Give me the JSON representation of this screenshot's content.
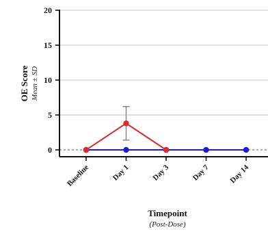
{
  "chart_data": {
    "type": "line",
    "ylabel": "OE Score",
    "ylabel_sub": "Mean ± SD",
    "xlabel": "Timepoint",
    "xlabel_sub": "(Post-Dose)",
    "categories": [
      "Baseline",
      "Day 1",
      "Day 3",
      "Day 7",
      "Day 14"
    ],
    "y_ticks": [
      "0",
      "5",
      "10",
      "15",
      "20"
    ],
    "ylim": [
      0,
      20
    ],
    "reference_line": 0,
    "grid": true,
    "colors": {
      "series_red": "#e02a2a",
      "series_blue": "#1a1adf",
      "grid": "#cfcfcf",
      "axis": "#111111",
      "error_bar": "#7a7a7a"
    },
    "series": [
      {
        "color_key": "series_red",
        "values": [
          0,
          3.8,
          0,
          0,
          0
        ],
        "error": [
          0,
          2.4,
          0,
          0,
          0
        ],
        "end_index": 2
      },
      {
        "color_key": "series_blue",
        "values": [
          0,
          0,
          0,
          0,
          0
        ],
        "error": [
          0,
          0,
          0,
          0,
          0
        ],
        "end_index": 4
      }
    ]
  }
}
